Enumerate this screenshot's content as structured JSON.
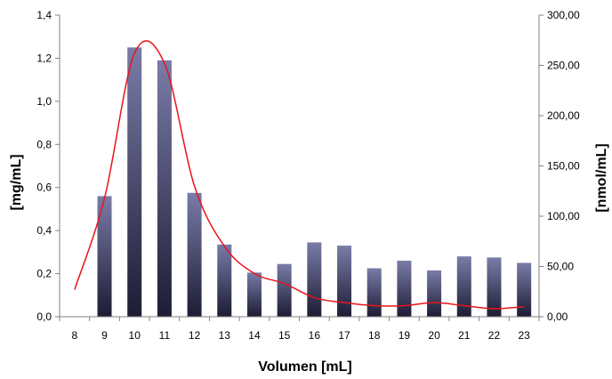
{
  "chart_data": {
    "type": "bar",
    "categories": [
      "8",
      "9",
      "10",
      "11",
      "12",
      "13",
      "14",
      "15",
      "16",
      "17",
      "18",
      "19",
      "20",
      "21",
      "22",
      "23"
    ],
    "series": [
      {
        "axis": "left",
        "kind": "bar",
        "values": [
          0,
          0.56,
          1.25,
          1.19,
          0.575,
          0.335,
          0.205,
          0.245,
          0.345,
          0.33,
          0.225,
          0.26,
          0.215,
          0.28,
          0.275,
          0.25
        ]
      },
      {
        "axis": "right",
        "kind": "line",
        "color": "#e8141c",
        "values": [
          27,
          118,
          262,
          252,
          130,
          70,
          43,
          33,
          19,
          14,
          11,
          11,
          14,
          11,
          8,
          10
        ]
      }
    ],
    "xlabel": "Volumen [mL]",
    "ylabel": "[mg/mL]",
    "y2label": "[nmol/mL]",
    "ylim": [
      0,
      1.4
    ],
    "y2lim": [
      0,
      300
    ],
    "yticks": [
      "0,0",
      "0,2",
      "0,4",
      "0,6",
      "0,8",
      "1,0",
      "1,2",
      "1,4"
    ],
    "y2ticks": [
      "0,00",
      "50,00",
      "100,00",
      "150,00",
      "200,00",
      "250,00",
      "300,00"
    ],
    "grid": false,
    "legend": "none",
    "colors": {
      "bar_top": "#7a7ca8",
      "bar_bottom": "#1c1c34",
      "line": "#e8141c"
    }
  }
}
